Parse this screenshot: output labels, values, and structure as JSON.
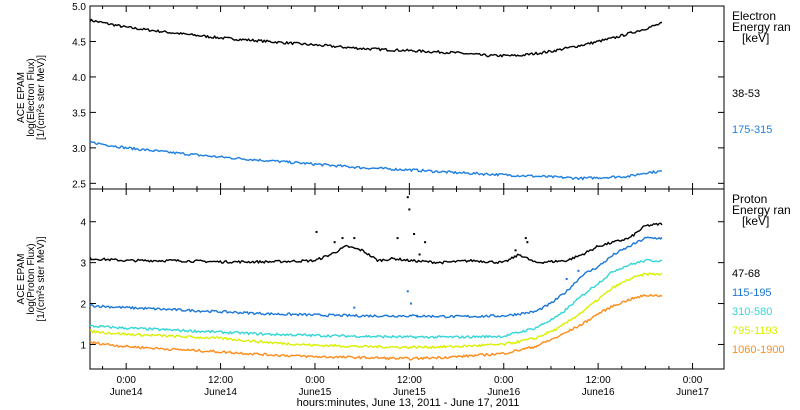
{
  "figure": {
    "xlabel": "hours:minutes, June 13, 2011 - June 17, 2011",
    "x_ticks": [
      {
        "t": 0,
        "line1": "0:00",
        "line2": "June14"
      },
      {
        "t": 12,
        "line1": "12:00",
        "line2": "June14"
      },
      {
        "t": 24,
        "line1": "0:00",
        "line2": "June15"
      },
      {
        "t": 36,
        "line1": "12:00",
        "line2": "June15"
      },
      {
        "t": 48,
        "line1": "0:00",
        "line2": "June16"
      },
      {
        "t": 60,
        "line1": "12:00",
        "line2": "June16"
      },
      {
        "t": 72,
        "line1": "0:00",
        "line2": "June17"
      }
    ]
  },
  "chart_data": [
    {
      "type": "scatter",
      "ylabel_lines": [
        "ACE EPAM",
        "log(Electron Flux)",
        "[1/(cm²s ster MeV)]"
      ],
      "ylim": [
        2.42,
        5.0
      ],
      "yticks": [
        2.5,
        3.0,
        3.5,
        4.0,
        4.5,
        5.0
      ],
      "ytick_labels": [
        "2.5",
        "3.0",
        "3.5",
        "4.0",
        "4.5",
        "5.0"
      ],
      "legend_title_lines": [
        "Electron",
        "Energy ran",
        "[keV]"
      ],
      "legend_location": "right",
      "series": [
        {
          "name": "38-53",
          "color": "#000000",
          "points": [
            [
              -4.6,
              4.8
            ],
            [
              0,
              4.7
            ],
            [
              6,
              4.62
            ],
            [
              12,
              4.55
            ],
            [
              18,
              4.5
            ],
            [
              24,
              4.45
            ],
            [
              30,
              4.4
            ],
            [
              36,
              4.37
            ],
            [
              42,
              4.34
            ],
            [
              46,
              4.3
            ],
            [
              50,
              4.3
            ],
            [
              54,
              4.36
            ],
            [
              58,
              4.45
            ],
            [
              62,
              4.55
            ],
            [
              66,
              4.68
            ],
            [
              68.2,
              4.76
            ]
          ]
        },
        {
          "name": "175-315",
          "color": "#1f7fe0",
          "points": [
            [
              -4.6,
              3.08
            ],
            [
              0,
              3.0
            ],
            [
              6,
              2.93
            ],
            [
              12,
              2.87
            ],
            [
              18,
              2.82
            ],
            [
              24,
              2.77
            ],
            [
              30,
              2.72
            ],
            [
              36,
              2.69
            ],
            [
              42,
              2.65
            ],
            [
              48,
              2.62
            ],
            [
              54,
              2.59
            ],
            [
              58,
              2.57
            ],
            [
              60,
              2.58
            ],
            [
              64,
              2.6
            ],
            [
              66,
              2.65
            ],
            [
              68.2,
              2.67
            ]
          ]
        }
      ]
    },
    {
      "type": "scatter",
      "ylabel_lines": [
        "ACE EPAM",
        "log(Proton Flux)",
        "[1/(cm²s ster MeV)]"
      ],
      "ylim": [
        0.4,
        4.8
      ],
      "yticks": [
        1,
        2,
        3,
        4
      ],
      "ytick_labels": [
        "1",
        "2",
        "3",
        "4"
      ],
      "legend_title_lines": [
        "Proton",
        "Energy ran",
        "[keV]"
      ],
      "legend_location": "right",
      "series": [
        {
          "name": "47-68",
          "color": "#000000",
          "points": [
            [
              -4.6,
              3.1
            ],
            [
              0,
              3.05
            ],
            [
              6,
              3.05
            ],
            [
              12,
              3.02
            ],
            [
              18,
              3.02
            ],
            [
              24,
              3.05
            ],
            [
              26,
              3.2
            ],
            [
              28,
              3.4
            ],
            [
              30,
              3.3
            ],
            [
              32,
              3.05
            ],
            [
              34,
              3.1
            ],
            [
              36,
              3.05
            ],
            [
              40,
              3.0
            ],
            [
              44,
              3.05
            ],
            [
              48,
              3.0
            ],
            [
              50,
              3.2
            ],
            [
              52,
              3.0
            ],
            [
              56,
              3.05
            ],
            [
              58,
              3.2
            ],
            [
              60,
              3.4
            ],
            [
              62,
              3.5
            ],
            [
              64,
              3.6
            ],
            [
              66,
              3.9
            ],
            [
              68.2,
              3.95
            ]
          ],
          "scatter": [
            [
              24.2,
              3.75
            ],
            [
              26.5,
              3.5
            ],
            [
              27.5,
              3.6
            ],
            [
              29.0,
              3.6
            ],
            [
              34.5,
              3.6
            ],
            [
              35.8,
              4.6
            ],
            [
              36.0,
              4.3
            ],
            [
              36.6,
              3.7
            ],
            [
              37.3,
              3.2
            ],
            [
              38.0,
              3.5
            ],
            [
              49.5,
              3.3
            ],
            [
              50.8,
              3.6
            ],
            [
              51.0,
              3.5
            ]
          ]
        },
        {
          "name": "115-195",
          "color": "#1a77d8",
          "points": [
            [
              -4.6,
              1.95
            ],
            [
              0,
              1.9
            ],
            [
              6,
              1.85
            ],
            [
              12,
              1.8
            ],
            [
              18,
              1.75
            ],
            [
              24,
              1.72
            ],
            [
              30,
              1.7
            ],
            [
              36,
              1.7
            ],
            [
              42,
              1.68
            ],
            [
              48,
              1.7
            ],
            [
              52,
              1.8
            ],
            [
              54,
              2.0
            ],
            [
              56,
              2.3
            ],
            [
              58,
              2.7
            ],
            [
              60,
              2.9
            ],
            [
              62,
              3.2
            ],
            [
              64,
              3.4
            ],
            [
              66,
              3.6
            ],
            [
              68.2,
              3.6
            ]
          ],
          "scatter": [
            [
              29.0,
              1.9
            ],
            [
              35.8,
              2.3
            ],
            [
              36.2,
              2.0
            ],
            [
              37.0,
              1.7
            ],
            [
              56.0,
              2.6
            ],
            [
              57.5,
              2.8
            ]
          ]
        },
        {
          "name": "310-580",
          "color": "#33d6d6",
          "points": [
            [
              -4.6,
              1.45
            ],
            [
              0,
              1.4
            ],
            [
              6,
              1.35
            ],
            [
              12,
              1.3
            ],
            [
              18,
              1.25
            ],
            [
              24,
              1.22
            ],
            [
              30,
              1.2
            ],
            [
              36,
              1.18
            ],
            [
              42,
              1.18
            ],
            [
              48,
              1.2
            ],
            [
              52,
              1.4
            ],
            [
              55,
              1.7
            ],
            [
              58,
              2.2
            ],
            [
              60,
              2.5
            ],
            [
              62,
              2.8
            ],
            [
              64,
              2.95
            ],
            [
              66,
              3.05
            ],
            [
              68.2,
              3.05
            ]
          ]
        },
        {
          "name": "795-1193",
          "color": "#d8f000",
          "points": [
            [
              -4.6,
              1.32
            ],
            [
              0,
              1.25
            ],
            [
              6,
              1.2
            ],
            [
              12,
              1.15
            ],
            [
              18,
              1.05
            ],
            [
              24,
              0.98
            ],
            [
              30,
              0.95
            ],
            [
              36,
              0.93
            ],
            [
              42,
              0.95
            ],
            [
              48,
              1.0
            ],
            [
              52,
              1.15
            ],
            [
              55,
              1.4
            ],
            [
              58,
              1.8
            ],
            [
              60,
              2.1
            ],
            [
              62,
              2.4
            ],
            [
              64,
              2.6
            ],
            [
              66,
              2.72
            ],
            [
              68.2,
              2.72
            ]
          ]
        },
        {
          "name": "1060-1900",
          "color": "#ff8c1a",
          "points": [
            [
              -4.6,
              1.05
            ],
            [
              0,
              0.95
            ],
            [
              6,
              0.88
            ],
            [
              12,
              0.82
            ],
            [
              18,
              0.75
            ],
            [
              24,
              0.7
            ],
            [
              30,
              0.68
            ],
            [
              36,
              0.65
            ],
            [
              42,
              0.7
            ],
            [
              48,
              0.78
            ],
            [
              52,
              0.95
            ],
            [
              55,
              1.2
            ],
            [
              58,
              1.5
            ],
            [
              60,
              1.75
            ],
            [
              62,
              1.95
            ],
            [
              64,
              2.1
            ],
            [
              66,
              2.2
            ],
            [
              68.2,
              2.2
            ]
          ]
        }
      ]
    }
  ]
}
